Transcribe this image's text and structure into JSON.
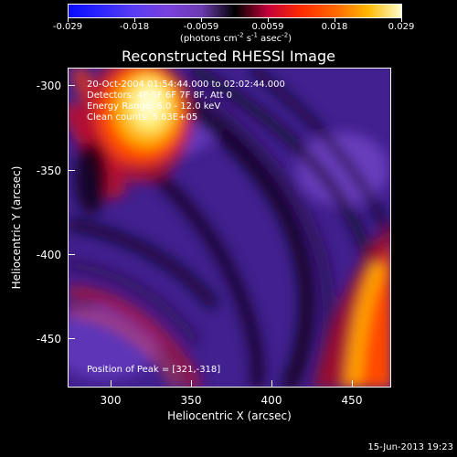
{
  "colorbar": {
    "tick_labels": [
      "-0.029",
      "-0.018",
      "-0.0059",
      "0.0059",
      "0.018",
      "0.029"
    ],
    "units_text": "(photons cm",
    "units_exp1": "-2",
    "units_mid1": " s",
    "units_exp2": "-1",
    "units_mid2": " asec",
    "units_exp3": "-2",
    "units_close": ")"
  },
  "title": "Reconstructed RHESSI Image",
  "annotations": {
    "time_range": "20-Oct-2004 01:54:44.000 to 02:02:44.000",
    "detectors": "Detectors: 4F 5F 6F 7F 8F, Att 0",
    "energy": "Energy Range: 6.0 - 12.0 keV",
    "clean": "Clean       counts: 5.63E+05",
    "peak": "Position of Peak = [321,-318]"
  },
  "axes": {
    "xlabel": "Heliocentric X (arcsec)",
    "ylabel": "Heliocentric Y (arcsec)",
    "x_ticks": [
      "300",
      "350",
      "400",
      "450"
    ],
    "y_ticks": [
      "-300",
      "-350",
      "-400",
      "-450"
    ],
    "x_range": [
      275,
      467
    ],
    "y_range": [
      -481,
      -290
    ]
  },
  "timestamp": "15-Jun-2013 19:23",
  "colors": {
    "background": "#000000",
    "peak_hot": "#ffffcc",
    "positive_orange": "#ff6600",
    "negative_purple": "#6b3bb0"
  }
}
